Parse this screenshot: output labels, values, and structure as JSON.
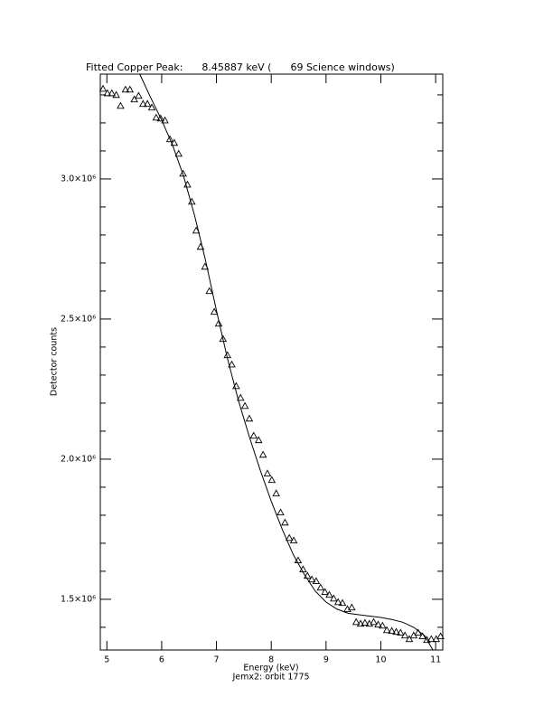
{
  "chart_data": {
    "type": "scatter",
    "title": "Fitted Copper Peak:      8.45887 keV (      69 Science windows)",
    "x_label": "Energy (keV)",
    "y_label": "Detector counts",
    "subtitle": "Jemx2: orbit 1775",
    "xlim": [
      4.88,
      11.13
    ],
    "ylim": [
      1319000,
      3374000
    ],
    "xticks": [
      5,
      6,
      7,
      8,
      9,
      10,
      11
    ],
    "yticks": [
      {
        "value": 1500000,
        "label": "1.5×10⁶"
      },
      {
        "value": 2000000,
        "label": "2.0×10⁶"
      },
      {
        "value": 2500000,
        "label": "2.5×10⁶"
      },
      {
        "value": 3000000,
        "label": "3.0×10⁶"
      }
    ],
    "yticks_minor": [
      1400000,
      1600000,
      1700000,
      1800000,
      1900000,
      2100000,
      2200000,
      2300000,
      2400000,
      2600000,
      2700000,
      2800000,
      2900000,
      3100000,
      3200000,
      3300000
    ],
    "grid": false,
    "series": [
      {
        "style": "markers",
        "marker": "triangle",
        "color": "#000000",
        "x": [
          4.93,
          5.01,
          5.09,
          5.17,
          5.25,
          5.34,
          5.42,
          5.5,
          5.58,
          5.66,
          5.74,
          5.82,
          5.9,
          5.98,
          6.06,
          6.15,
          6.23,
          6.31,
          6.39,
          6.47,
          6.55,
          6.63,
          6.71,
          6.79,
          6.87,
          6.96,
          7.04,
          7.12,
          7.2,
          7.28,
          7.36,
          7.44,
          7.52,
          7.6,
          7.68,
          7.77,
          7.85,
          7.93,
          8.01,
          8.09,
          8.17,
          8.25,
          8.33,
          8.41,
          8.49,
          8.58,
          8.66,
          8.74,
          8.82,
          8.9,
          8.98,
          9.06,
          9.14,
          9.22,
          9.3,
          9.39,
          9.47,
          9.55,
          9.63,
          9.71,
          9.79,
          9.87,
          9.95,
          10.03,
          10.11,
          10.2,
          10.28,
          10.36,
          10.44,
          10.52,
          10.6,
          10.68,
          10.76,
          10.84,
          10.92,
          11.01,
          11.09
        ],
        "values": [
          3322000,
          3306000,
          3306000,
          3300000,
          3261000,
          3319000,
          3319000,
          3284000,
          3297000,
          3268000,
          3268000,
          3255000,
          3219000,
          3216000,
          3209000,
          3142000,
          3129000,
          3090000,
          3019000,
          2980000,
          2919000,
          2816000,
          2758000,
          2687000,
          2600000,
          2526000,
          2484000,
          2429000,
          2371000,
          2338000,
          2261000,
          2219000,
          2190000,
          2145000,
          2084000,
          2068000,
          2016000,
          1949000,
          1926000,
          1878000,
          1810000,
          1774000,
          1719000,
          1710000,
          1639000,
          1607000,
          1584000,
          1571000,
          1565000,
          1542000,
          1526000,
          1516000,
          1503000,
          1490000,
          1487000,
          1465000,
          1471000,
          1419000,
          1413000,
          1416000,
          1413000,
          1419000,
          1410000,
          1406000,
          1390000,
          1387000,
          1384000,
          1381000,
          1371000,
          1358000,
          1371000,
          1381000,
          1368000,
          1355000,
          1358000,
          1358000,
          1368000
        ]
      },
      {
        "style": "line",
        "color": "#000000",
        "x": [
          5.6,
          5.8,
          6.0,
          6.2,
          6.4,
          6.6,
          6.8,
          7.0,
          7.2,
          7.4,
          7.6,
          7.8,
          8.0,
          8.2,
          8.4,
          8.6,
          8.8,
          9.0,
          9.2,
          9.4,
          9.6,
          9.8,
          10.0,
          10.2,
          10.4,
          10.6,
          10.8,
          10.95
        ],
        "values": [
          3374000,
          3290000,
          3210000,
          3120000,
          3010000,
          2870000,
          2710000,
          2530000,
          2360000,
          2210000,
          2080000,
          1960000,
          1850000,
          1750000,
          1660000,
          1590000,
          1530000,
          1490000,
          1465000,
          1450000,
          1445000,
          1440000,
          1435000,
          1428000,
          1418000,
          1400000,
          1370000,
          1319000
        ]
      }
    ]
  }
}
